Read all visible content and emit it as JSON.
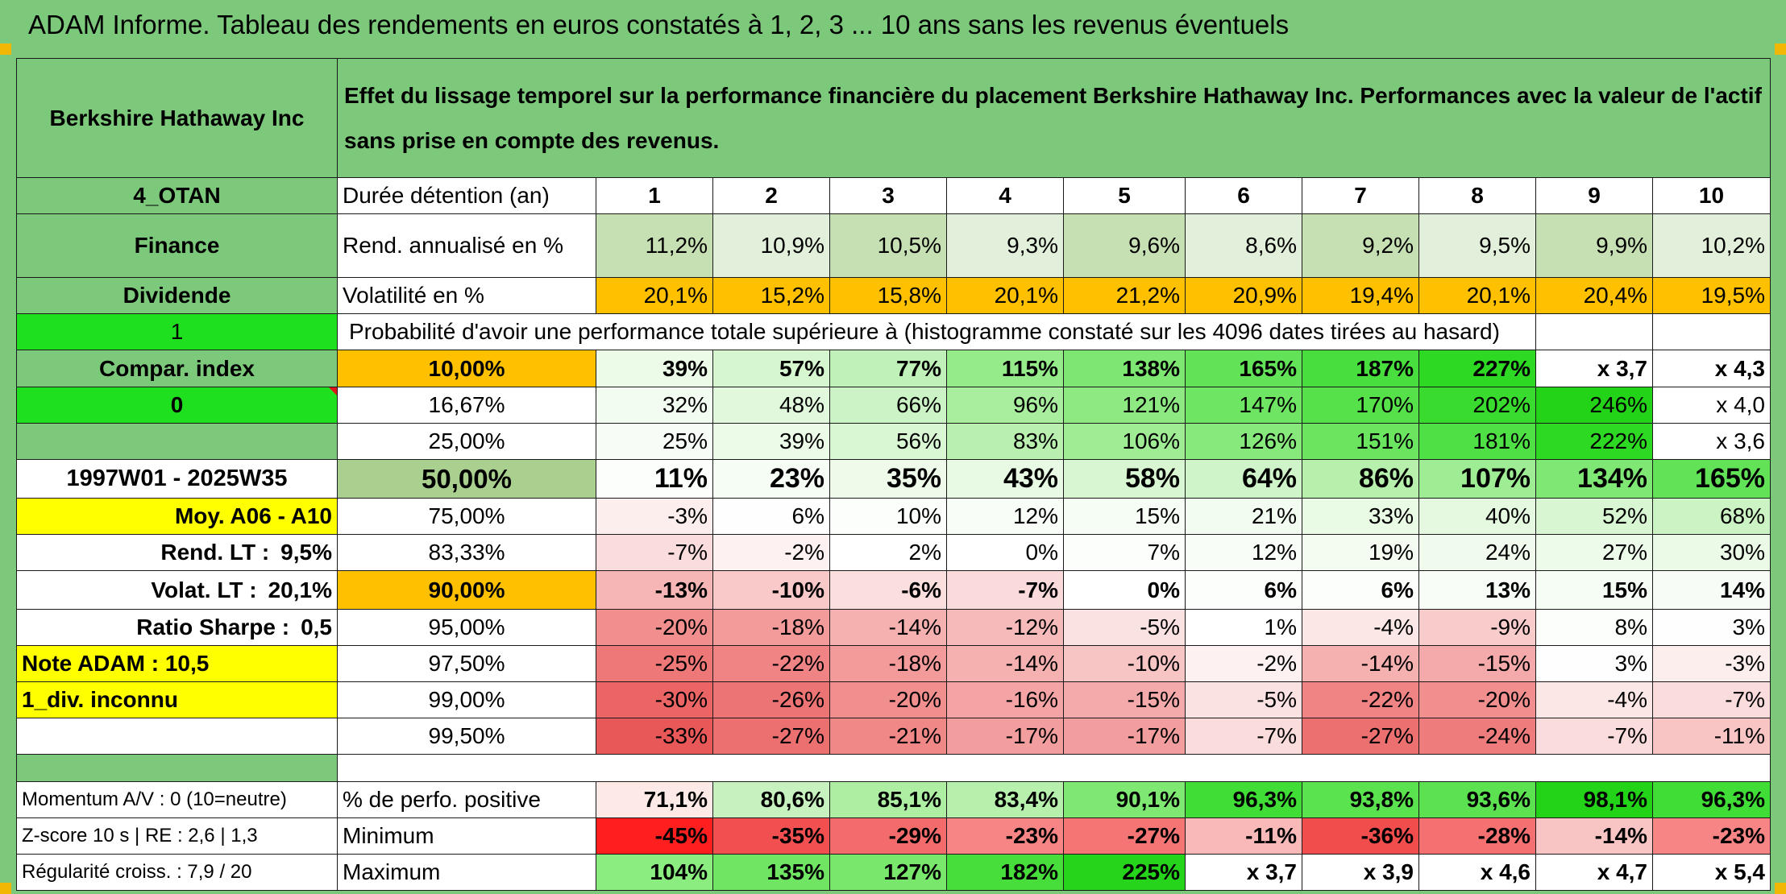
{
  "title": "ADAM Informe. Tableau des rendements en euros constatés à 1, 2, 3 ... 10 ans sans les revenus éventuels",
  "header": {
    "company": "Berkshire Hathaway Inc",
    "description": "Effet du lissage temporel sur la performance financière du placement Berkshire Hathaway Inc. Performances avec la valeur de l'actif sans prise en compte des revenus."
  },
  "left_panel": {
    "code": "4_OTAN",
    "sector": "Finance",
    "dividend": "Dividende",
    "one": "1",
    "compar_index": "Compar. index",
    "zero": "0",
    "period": "1997W01 - 2025W35",
    "moy": "Moy. A06 - A10",
    "rend_lt_label": "Rend. LT :",
    "rend_lt_value": "9,5%",
    "volat_lt_label": "Volat. LT :",
    "volat_lt_value": "20,1%",
    "sharpe_label": "Ratio Sharpe :",
    "sharpe_value": "0,5",
    "note_adam": "Note ADAM : 10,5",
    "div_inconnu": "1_div. inconnu",
    "momentum": "Momentum A/V : 0 (10=neutre)",
    "zscore": "Z-score 10 s | RE : 2,6 | 1,3",
    "regularite": "Régularité croiss. : 7,9 / 20"
  },
  "durations_label": "Durée détention (an)",
  "durations": [
    "1",
    "2",
    "3",
    "4",
    "5",
    "6",
    "7",
    "8",
    "9",
    "10"
  ],
  "rend_label": "Rend. annualisé en %",
  "rend": [
    "11,2%",
    "10,9%",
    "10,5%",
    "9,3%",
    "9,6%",
    "8,6%",
    "9,2%",
    "9,5%",
    "9,9%",
    "10,2%"
  ],
  "volat_label": "Volatilité en %",
  "volat": [
    "20,1%",
    "15,2%",
    "15,8%",
    "20,1%",
    "21,2%",
    "20,9%",
    "19,4%",
    "20,1%",
    "20,4%",
    "19,5%"
  ],
  "proba_label": "Probabilité d'avoir une performance totale supérieure à (histogramme constaté sur les 4096 dates tirées au hasard)",
  "percentile_rows": [
    {
      "p": "10,00%",
      "vals": [
        "39%",
        "57%",
        "77%",
        "115%",
        "138%",
        "165%",
        "187%",
        "227%",
        "x 3,7",
        "x 4,3"
      ],
      "bg": [
        "#ecfbe8",
        "#d6f6d0",
        "#c0f1b8",
        "#95ea8a",
        "#7ee772",
        "#62e357",
        "#48df3e",
        "#2ed924",
        "#ffffff",
        "#ffffff"
      ]
    },
    {
      "p": "16,67%",
      "vals": [
        "32%",
        "48%",
        "66%",
        "96%",
        "121%",
        "147%",
        "170%",
        "202%",
        "246%",
        "x 4,0"
      ],
      "bg": [
        "#f3fcf1",
        "#e1f8dc",
        "#ccf3c5",
        "#a9ee9f",
        "#8ee983",
        "#6fe564",
        "#56e14b",
        "#39db2f",
        "#22d318",
        "#ffffff"
      ]
    },
    {
      "p": "25,00%",
      "vals": [
        "25%",
        "39%",
        "56%",
        "83%",
        "106%",
        "126%",
        "151%",
        "181%",
        "222%",
        "x 3,6"
      ],
      "bg": [
        "#f7fdf6",
        "#ecfbe8",
        "#d9f7d3",
        "#b9f0b0",
        "#9fec95",
        "#87e87c",
        "#6be460",
        "#4ee044",
        "#2ed924",
        "#ffffff"
      ]
    },
    {
      "p": "50,00%",
      "vals": [
        "11%",
        "23%",
        "35%",
        "43%",
        "58%",
        "64%",
        "86%",
        "107%",
        "134%",
        "165%"
      ],
      "bg": [
        "#fbfefa",
        "#f6fdf4",
        "#eefbea",
        "#e8fae3",
        "#d8f6d2",
        "#d0f4c9",
        "#b6f0ac",
        "#9eec94",
        "#7fe774",
        "#62e357"
      ]
    },
    {
      "p": "75,00%",
      "vals": [
        "-3%",
        "6%",
        "10%",
        "12%",
        "15%",
        "21%",
        "33%",
        "40%",
        "52%",
        "68%"
      ],
      "bg": [
        "#fdeeee",
        "#fdfefd",
        "#fbfefb",
        "#f9fdf8",
        "#f6fdf5",
        "#f2fcf0",
        "#e9fae5",
        "#e4f9df",
        "#d9f6d3",
        "#cbf3c4"
      ]
    },
    {
      "p": "83,33%",
      "vals": [
        "-7%",
        "-2%",
        "2%",
        "0%",
        "7%",
        "12%",
        "19%",
        "24%",
        "27%",
        "30%"
      ],
      "bg": [
        "#fbdcdc",
        "#fdf1f1",
        "#ffffff",
        "#ffffff",
        "#fcfefc",
        "#f9fdf8",
        "#f4fcf2",
        "#f0fbee",
        "#edfbea",
        "#eafae6"
      ]
    },
    {
      "p": "90,00%",
      "vals": [
        "-13%",
        "-10%",
        "-6%",
        "-7%",
        "0%",
        "6%",
        "6%",
        "13%",
        "15%",
        "14%"
      ],
      "bg": [
        "#f6b6b6",
        "#f9c9c9",
        "#fbdede",
        "#fadada",
        "#ffffff",
        "#fcfefc",
        "#fcfefc",
        "#f8fdf7",
        "#f6fdf5",
        "#f7fdf6"
      ]
    },
    {
      "p": "95,00%",
      "vals": [
        "-20%",
        "-18%",
        "-14%",
        "-12%",
        "-5%",
        "1%",
        "-4%",
        "-9%",
        "8%",
        "3%"
      ],
      "bg": [
        "#f18e8e",
        "#f39a9a",
        "#f5b0b0",
        "#f6baba",
        "#fbe2e2",
        "#ffffff",
        "#fce7e7",
        "#f9cccc",
        "#fbfefa",
        "#fdfefd"
      ]
    },
    {
      "p": "97,50%",
      "vals": [
        "-25%",
        "-22%",
        "-18%",
        "-14%",
        "-10%",
        "-2%",
        "-14%",
        "-15%",
        "3%",
        "-3%"
      ],
      "bg": [
        "#ee7878",
        "#f08383",
        "#f39a9a",
        "#f5b0b0",
        "#f8c5c5",
        "#fdf1f1",
        "#f5b0b0",
        "#f4aaaa",
        "#fdfefd",
        "#fdeeee"
      ]
    },
    {
      "p": "99,00%",
      "vals": [
        "-30%",
        "-26%",
        "-20%",
        "-16%",
        "-15%",
        "-5%",
        "-22%",
        "-20%",
        "-4%",
        "-7%"
      ],
      "bg": [
        "#eb6565",
        "#ed7474",
        "#f18e8e",
        "#f4a4a4",
        "#f4aaaa",
        "#fbe2e2",
        "#f08383",
        "#f18e8e",
        "#fce7e7",
        "#fbdcdc"
      ]
    },
    {
      "p": "99,50%",
      "vals": [
        "-33%",
        "-27%",
        "-21%",
        "-17%",
        "-17%",
        "-7%",
        "-27%",
        "-24%",
        "-7%",
        "-11%"
      ],
      "bg": [
        "#e95858",
        "#ec7070",
        "#f08888",
        "#f39e9e",
        "#f39e9e",
        "#fbdcdc",
        "#ec7070",
        "#ee7c7c",
        "#fbdcdc",
        "#f8c4c4"
      ]
    }
  ],
  "pct_pos_label": "% de perfo. positive",
  "pct_pos": [
    "71,1%",
    "80,6%",
    "85,1%",
    "83,4%",
    "90,1%",
    "96,3%",
    "93,8%",
    "93,6%",
    "98,1%",
    "96,3%"
  ],
  "pct_pos_bg": [
    "#fde9e6",
    "#c7f2bf",
    "#adeea3",
    "#b7f0ad",
    "#7ee872",
    "#3fdd35",
    "#5ae24f",
    "#5ce251",
    "#22d318",
    "#3fdd35"
  ],
  "min_label": "Minimum",
  "min": [
    "-45%",
    "-35%",
    "-29%",
    "-23%",
    "-27%",
    "-11%",
    "-36%",
    "-28%",
    "-14%",
    "-23%"
  ],
  "min_bg": [
    "#ff1f1f",
    "#f25050",
    "#f46b6b",
    "#f78585",
    "#f57575",
    "#fab9b9",
    "#f24d4d",
    "#f57070",
    "#f9c4c4",
    "#f78585"
  ],
  "max_label": "Maximum",
  "max": [
    "104%",
    "135%",
    "127%",
    "182%",
    "225%",
    "x 3,7",
    "x 3,9",
    "x 4,6",
    "x 4,7",
    "x 5,4"
  ],
  "max_bg": [
    "#8bec7f",
    "#6fe563",
    "#78e76c",
    "#47de3c",
    "#25d41b",
    "#ffffff",
    "#ffffff",
    "#ffffff",
    "#ffffff",
    "#ffffff"
  ],
  "colors": {
    "header_green": "#7dc97c",
    "orange": "#ffc000",
    "yellow": "#ffff00",
    "lime": "#1ee01e",
    "sage": "#a9d08e",
    "red_text": "#d10f1c"
  }
}
